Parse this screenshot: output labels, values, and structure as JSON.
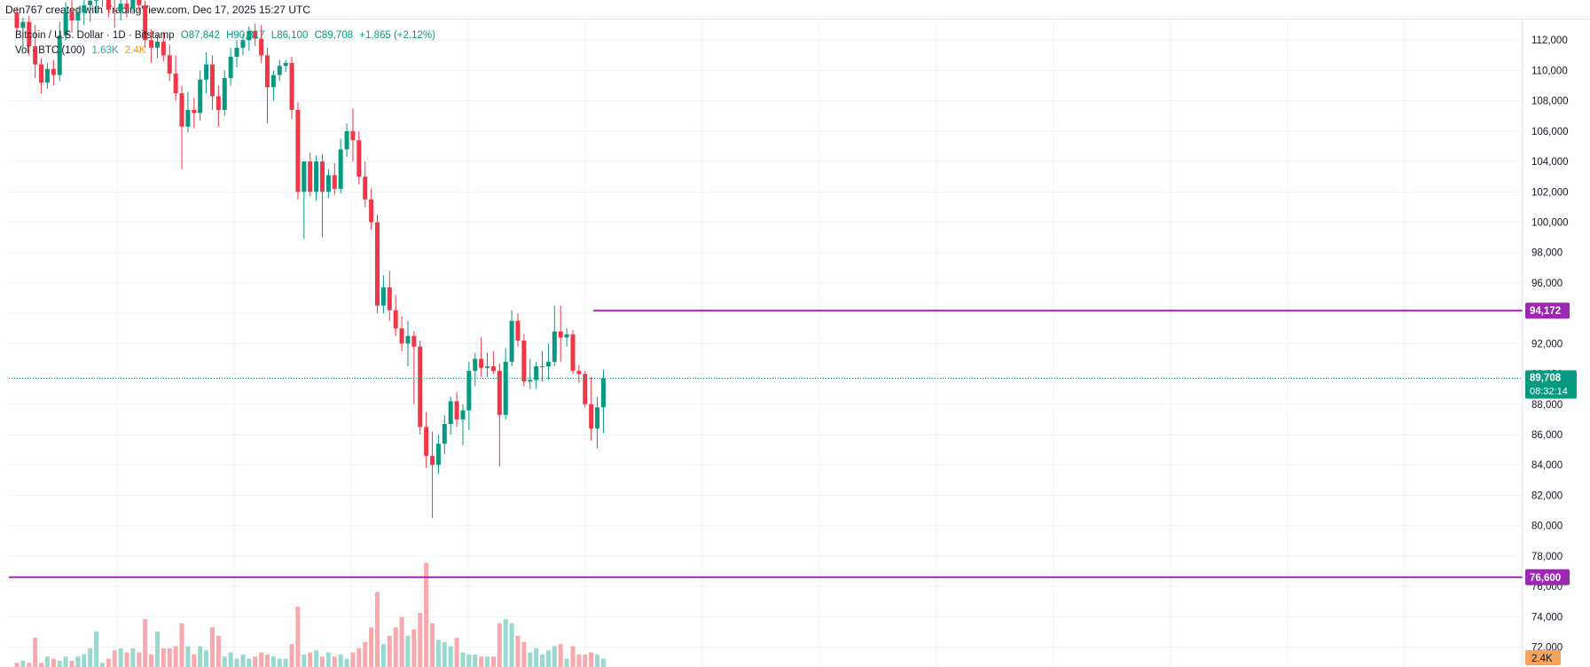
{
  "header": {
    "credit": "Den767 created with TradingView.com, Dec 17, 2025 15:27 UTC"
  },
  "legend": {
    "symbol": "Bitcoin / U.S. Dollar · 1D · Bitstamp",
    "open": "O87,842",
    "high": "H90,317",
    "low": "L86,100",
    "close": "C89,708",
    "change": "+1,865 (+2.12%)",
    "vol_label": "Vol · BTC (100)",
    "vol_value": "1.63K",
    "vol_ma": "2.4K"
  },
  "colors": {
    "up": "#089981",
    "down": "#f23645",
    "vol_up": "#9ad9d0",
    "vol_down": "#f7a9ad",
    "level_line": "#9c27b0",
    "price_tag": "#089981",
    "vol_ma_tag": "#f7a35c",
    "grid": "#f0f3fa"
  },
  "chart_data": {
    "type": "candlestick",
    "symbol": "BTCUSD",
    "timeframe": "1D",
    "y_axis_ticks": [
      "72,000",
      "74,000",
      "76,000",
      "78,000",
      "80,000",
      "82,000",
      "84,000",
      "86,000",
      "88,000",
      "90,000",
      "92,000",
      "94,000",
      "96,000",
      "98,000",
      "100,000",
      "102,000",
      "104,000",
      "106,000",
      "108,000",
      "110,000",
      "112,000"
    ],
    "ylim": [
      70800,
      113300
    ],
    "horizontal_levels": [
      {
        "label": "94,172",
        "value": 94172
      },
      {
        "label": "76,600",
        "value": 76600
      }
    ],
    "last_price": {
      "label": "89,708",
      "value": 89708,
      "countdown": "08:32:14"
    },
    "volume_ma_label": "2.4K",
    "candles": [
      {
        "o": 113800,
        "h": 114200,
        "l": 112500,
        "c": 112800,
        "v": 0.1
      },
      {
        "o": 112800,
        "h": 113500,
        "l": 111500,
        "c": 113200,
        "v": 0.15
      },
      {
        "o": 113200,
        "h": 113600,
        "l": 111000,
        "c": 111600,
        "v": 0.1
      },
      {
        "o": 111600,
        "h": 113000,
        "l": 109500,
        "c": 110400,
        "v": 0.7
      },
      {
        "o": 110400,
        "h": 110800,
        "l": 108500,
        "c": 109200,
        "v": 0.1
      },
      {
        "o": 109200,
        "h": 110500,
        "l": 108800,
        "c": 110100,
        "v": 0.25
      },
      {
        "o": 110100,
        "h": 110700,
        "l": 109000,
        "c": 109700,
        "v": 0.2
      },
      {
        "o": 109700,
        "h": 113200,
        "l": 109300,
        "c": 112300,
        "v": 0.15
      },
      {
        "o": 112300,
        "h": 114500,
        "l": 112000,
        "c": 113900,
        "v": 0.25
      },
      {
        "o": 113900,
        "h": 114800,
        "l": 112500,
        "c": 113300,
        "v": 0.15
      },
      {
        "o": 113300,
        "h": 114200,
        "l": 112300,
        "c": 113800,
        "v": 0.25
      },
      {
        "o": 113800,
        "h": 115000,
        "l": 113000,
        "c": 114300,
        "v": 0.3
      },
      {
        "o": 114300,
        "h": 115200,
        "l": 113200,
        "c": 114600,
        "v": 0.45
      },
      {
        "o": 114600,
        "h": 115500,
        "l": 113800,
        "c": 114900,
        "v": 0.85
      },
      {
        "o": 114900,
        "h": 115600,
        "l": 114200,
        "c": 115100,
        "v": 0.1
      },
      {
        "o": 115100,
        "h": 115400,
        "l": 113500,
        "c": 114000,
        "v": 0.2
      },
      {
        "o": 114000,
        "h": 114700,
        "l": 112800,
        "c": 113900,
        "v": 0.4
      },
      {
        "o": 113900,
        "h": 114800,
        "l": 113300,
        "c": 114400,
        "v": 0.45
      },
      {
        "o": 114400,
        "h": 114700,
        "l": 113500,
        "c": 114100,
        "v": 0.35
      },
      {
        "o": 114100,
        "h": 115000,
        "l": 113700,
        "c": 114700,
        "v": 0.45
      },
      {
        "o": 114700,
        "h": 115300,
        "l": 113900,
        "c": 114300,
        "v": 0.35
      },
      {
        "o": 114300,
        "h": 114600,
        "l": 111500,
        "c": 112000,
        "v": 1.15
      },
      {
        "o": 112000,
        "h": 112700,
        "l": 110500,
        "c": 111500,
        "v": 0.3
      },
      {
        "o": 111500,
        "h": 112300,
        "l": 110800,
        "c": 111900,
        "v": 0.85
      },
      {
        "o": 111900,
        "h": 112500,
        "l": 110600,
        "c": 111000,
        "v": 0.45
      },
      {
        "o": 111000,
        "h": 111700,
        "l": 109300,
        "c": 109800,
        "v": 0.45
      },
      {
        "o": 109800,
        "h": 111000,
        "l": 108000,
        "c": 108500,
        "v": 0.5
      },
      {
        "o": 108500,
        "h": 109000,
        "l": 103500,
        "c": 106300,
        "v": 1.05
      },
      {
        "o": 106300,
        "h": 108600,
        "l": 105900,
        "c": 107400,
        "v": 0.5
      },
      {
        "o": 107400,
        "h": 108200,
        "l": 106200,
        "c": 107200,
        "v": 0.3
      },
      {
        "o": 107200,
        "h": 110000,
        "l": 106700,
        "c": 109400,
        "v": 0.5
      },
      {
        "o": 109400,
        "h": 111200,
        "l": 108500,
        "c": 110400,
        "v": 0.4
      },
      {
        "o": 110400,
        "h": 111000,
        "l": 107400,
        "c": 108300,
        "v": 0.95
      },
      {
        "o": 108300,
        "h": 109000,
        "l": 106300,
        "c": 107400,
        "v": 0.75
      },
      {
        "o": 107400,
        "h": 110000,
        "l": 107000,
        "c": 109500,
        "v": 0.25
      },
      {
        "o": 109500,
        "h": 111500,
        "l": 109000,
        "c": 110900,
        "v": 0.35
      },
      {
        "o": 110900,
        "h": 112000,
        "l": 110200,
        "c": 111500,
        "v": 0.2
      },
      {
        "o": 111500,
        "h": 112400,
        "l": 111000,
        "c": 112000,
        "v": 0.3
      },
      {
        "o": 112000,
        "h": 112900,
        "l": 111300,
        "c": 112600,
        "v": 0.2
      },
      {
        "o": 112600,
        "h": 113100,
        "l": 111600,
        "c": 112100,
        "v": 0.25
      },
      {
        "o": 112100,
        "h": 113000,
        "l": 110500,
        "c": 111000,
        "v": 0.35
      },
      {
        "o": 111000,
        "h": 111500,
        "l": 106500,
        "c": 108900,
        "v": 0.3
      },
      {
        "o": 108900,
        "h": 110000,
        "l": 108000,
        "c": 109700,
        "v": 0.25
      },
      {
        "o": 109700,
        "h": 110700,
        "l": 109300,
        "c": 110300,
        "v": 0.2
      },
      {
        "o": 110300,
        "h": 110700,
        "l": 109900,
        "c": 110500,
        "v": 0.2
      },
      {
        "o": 110500,
        "h": 110900,
        "l": 106800,
        "c": 107400,
        "v": 0.55
      },
      {
        "o": 107400,
        "h": 107900,
        "l": 101500,
        "c": 102000,
        "v": 1.45
      },
      {
        "o": 102000,
        "h": 104000,
        "l": 98900,
        "c": 104000,
        "v": 0.3
      },
      {
        "o": 104000,
        "h": 104600,
        "l": 101700,
        "c": 102000,
        "v": 0.35
      },
      {
        "o": 102000,
        "h": 104400,
        "l": 101400,
        "c": 104000,
        "v": 0.4
      },
      {
        "o": 104000,
        "h": 104500,
        "l": 99000,
        "c": 102000,
        "v": 0.25
      },
      {
        "o": 102000,
        "h": 103500,
        "l": 101600,
        "c": 103100,
        "v": 0.35
      },
      {
        "o": 103100,
        "h": 103900,
        "l": 101800,
        "c": 102200,
        "v": 0.25
      },
      {
        "o": 102200,
        "h": 105500,
        "l": 101900,
        "c": 104800,
        "v": 0.3
      },
      {
        "o": 104800,
        "h": 106500,
        "l": 104300,
        "c": 106000,
        "v": 0.2
      },
      {
        "o": 106000,
        "h": 107500,
        "l": 104000,
        "c": 105400,
        "v": 0.35
      },
      {
        "o": 105400,
        "h": 106000,
        "l": 102500,
        "c": 103000,
        "v": 0.45
      },
      {
        "o": 103000,
        "h": 104000,
        "l": 101000,
        "c": 101500,
        "v": 0.6
      },
      {
        "o": 101500,
        "h": 102200,
        "l": 99500,
        "c": 100000,
        "v": 0.95
      },
      {
        "o": 100000,
        "h": 100500,
        "l": 94000,
        "c": 94500,
        "v": 1.8
      },
      {
        "o": 94500,
        "h": 96500,
        "l": 94000,
        "c": 95700,
        "v": 0.55
      },
      {
        "o": 95700,
        "h": 96800,
        "l": 93500,
        "c": 94200,
        "v": 0.75
      },
      {
        "o": 94200,
        "h": 95200,
        "l": 92500,
        "c": 93000,
        "v": 0.95
      },
      {
        "o": 93000,
        "h": 93800,
        "l": 91500,
        "c": 92000,
        "v": 1.2
      },
      {
        "o": 92000,
        "h": 93500,
        "l": 90500,
        "c": 92500,
        "v": 0.75
      },
      {
        "o": 92500,
        "h": 92800,
        "l": 88000,
        "c": 91800,
        "v": 0.9
      },
      {
        "o": 91800,
        "h": 92200,
        "l": 86000,
        "c": 86500,
        "v": 1.3
      },
      {
        "o": 86500,
        "h": 87500,
        "l": 83800,
        "c": 84600,
        "v": 2.5
      },
      {
        "o": 84600,
        "h": 86200,
        "l": 80500,
        "c": 84000,
        "v": 1.05
      },
      {
        "o": 84000,
        "h": 86000,
        "l": 83400,
        "c": 85400,
        "v": 0.65
      },
      {
        "o": 85400,
        "h": 87300,
        "l": 84700,
        "c": 86700,
        "v": 0.6
      },
      {
        "o": 86700,
        "h": 88500,
        "l": 86000,
        "c": 88200,
        "v": 0.5
      },
      {
        "o": 88200,
        "h": 88800,
        "l": 86500,
        "c": 87000,
        "v": 0.7
      },
      {
        "o": 87000,
        "h": 88000,
        "l": 85300,
        "c": 87600,
        "v": 0.35
      },
      {
        "o": 87600,
        "h": 90800,
        "l": 86300,
        "c": 90200,
        "v": 0.3
      },
      {
        "o": 90200,
        "h": 91400,
        "l": 89200,
        "c": 91000,
        "v": 0.3
      },
      {
        "o": 91000,
        "h": 92400,
        "l": 89800,
        "c": 90400,
        "v": 0.25
      },
      {
        "o": 90400,
        "h": 91400,
        "l": 89800,
        "c": 90500,
        "v": 0.25
      },
      {
        "o": 90500,
        "h": 91500,
        "l": 90000,
        "c": 90200,
        "v": 0.25
      },
      {
        "o": 90200,
        "h": 90700,
        "l": 83900,
        "c": 87300,
        "v": 1.05
      },
      {
        "o": 87300,
        "h": 91700,
        "l": 87000,
        "c": 90800,
        "v": 1.15
      },
      {
        "o": 90800,
        "h": 94200,
        "l": 90500,
        "c": 93500,
        "v": 1.05
      },
      {
        "o": 93500,
        "h": 94000,
        "l": 91800,
        "c": 92200,
        "v": 0.75
      },
      {
        "o": 92200,
        "h": 92600,
        "l": 89200,
        "c": 89500,
        "v": 0.6
      },
      {
        "o": 89500,
        "h": 91000,
        "l": 89000,
        "c": 89600,
        "v": 0.35
      },
      {
        "o": 89600,
        "h": 90800,
        "l": 89000,
        "c": 90500,
        "v": 0.45
      },
      {
        "o": 90500,
        "h": 91500,
        "l": 89500,
        "c": 90500,
        "v": 0.3
      },
      {
        "o": 90500,
        "h": 92000,
        "l": 89600,
        "c": 90800,
        "v": 0.4
      },
      {
        "o": 90800,
        "h": 94500,
        "l": 90500,
        "c": 92800,
        "v": 0.5
      },
      {
        "o": 92800,
        "h": 94500,
        "l": 90800,
        "c": 92400,
        "v": 0.55
      },
      {
        "o": 92400,
        "h": 93000,
        "l": 91800,
        "c": 92600,
        "v": 0.2
      },
      {
        "o": 92600,
        "h": 92900,
        "l": 90000,
        "c": 90200,
        "v": 0.5
      },
      {
        "o": 90200,
        "h": 90600,
        "l": 89400,
        "c": 90000,
        "v": 0.3
      },
      {
        "o": 90000,
        "h": 90200,
        "l": 87800,
        "c": 88000,
        "v": 0.3
      },
      {
        "o": 88000,
        "h": 89800,
        "l": 85600,
        "c": 86400,
        "v": 0.35
      },
      {
        "o": 86400,
        "h": 88500,
        "l": 85100,
        "c": 87800,
        "v": 0.3
      },
      {
        "o": 87800,
        "h": 90300,
        "l": 86100,
        "c": 89700,
        "v": 0.2
      }
    ]
  }
}
